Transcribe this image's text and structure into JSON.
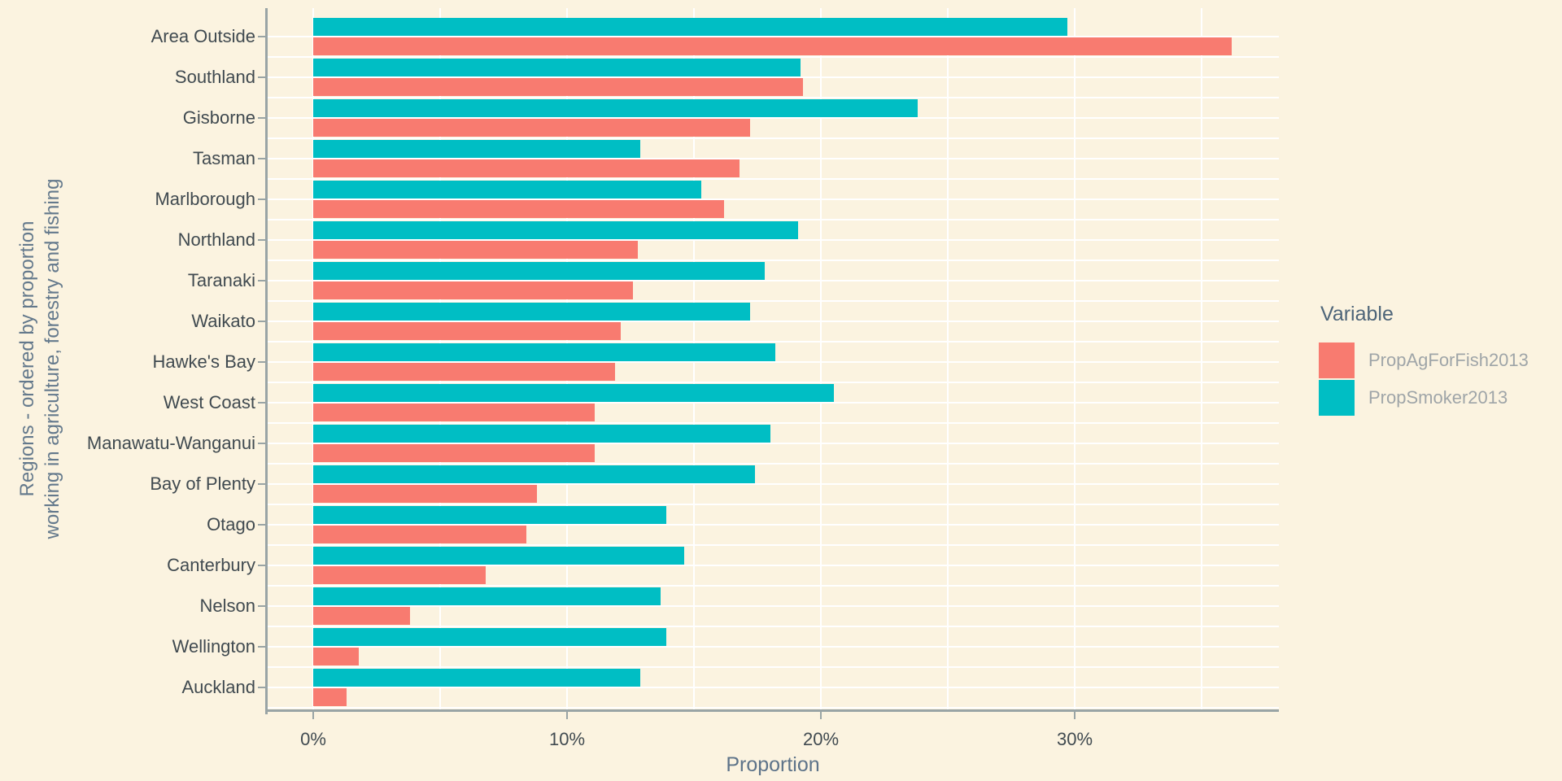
{
  "colors": {
    "background": "#FBF3E0",
    "bar_red": "#F87B70",
    "bar_teal": "#00BEC4",
    "grid": "#FFFFFF",
    "axis_line": "#99A4A5",
    "tick_text": "#404A50",
    "axis_title_text": "#5D7389",
    "legend_title_text": "#4E6579",
    "legend_label_text": "#9FA5A8"
  },
  "chart_data": {
    "type": "bar",
    "orientation": "horizontal",
    "title": "",
    "xlabel": "Proportion",
    "ylabel_line1": "Regions - ordered by proportion",
    "ylabel_line2": "working in agriculture, forestry and fishing",
    "grid": true,
    "legend": {
      "title": "Variable",
      "position": "right"
    },
    "categories": [
      "Area Outside",
      "Southland",
      "Gisborne",
      "Tasman",
      "Marlborough",
      "Northland",
      "Taranaki",
      "Waikato",
      "Hawke's Bay",
      "West Coast",
      "Manawatu-Wanganui",
      "Bay of Plenty",
      "Otago",
      "Canterbury",
      "Nelson",
      "Wellington",
      "Auckland"
    ],
    "series": [
      {
        "name": "PropAgForFish2013",
        "color": "#F87B70",
        "values": [
          36.2,
          19.3,
          17.2,
          16.8,
          16.2,
          12.8,
          12.6,
          12.1,
          11.9,
          11.1,
          11.1,
          8.8,
          8.4,
          6.8,
          3.8,
          1.8,
          1.3
        ]
      },
      {
        "name": "PropSmoker2013",
        "color": "#00BEC4",
        "values": [
          29.7,
          19.2,
          23.8,
          12.9,
          15.3,
          19.1,
          17.8,
          17.2,
          18.2,
          20.5,
          18.0,
          17.4,
          13.9,
          14.6,
          13.7,
          13.9,
          12.9
        ]
      }
    ],
    "x_tick_values": [
      0,
      10,
      20,
      30
    ],
    "x_tick_labels": [
      "0%",
      "10%",
      "20%",
      "30%"
    ],
    "x_minor_tick_values": [
      5,
      15,
      25,
      35
    ],
    "xlim": [
      0,
      38
    ]
  }
}
